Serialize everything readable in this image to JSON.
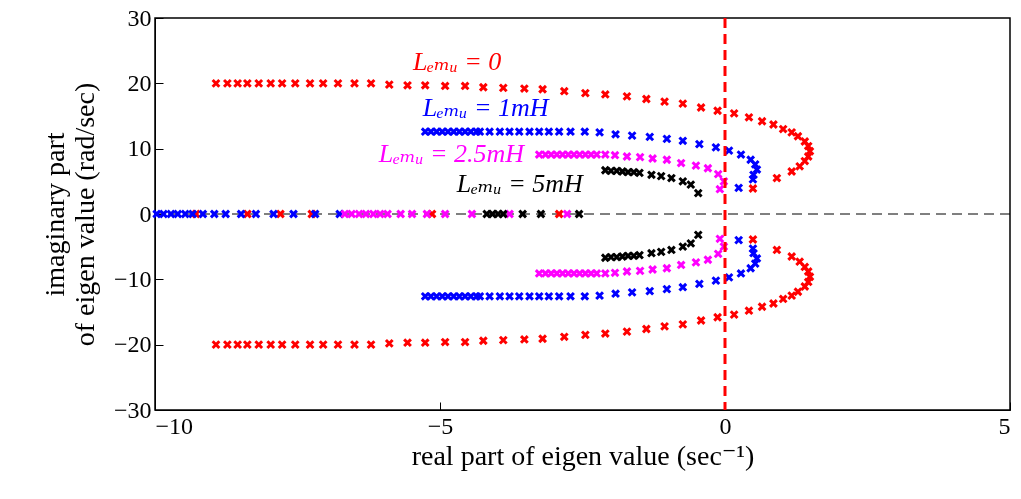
{
  "chart_data": {
    "type": "scatter",
    "xlabel": "real part of eigen value (sec⁻¹)",
    "ylabel": "imaginary part\nof eigen value (rad/sec)",
    "xlim": [
      -10,
      5
    ],
    "xticks": [
      -10,
      -5,
      0,
      5
    ],
    "ylim": [
      -30,
      30
    ],
    "yticks": [
      -30,
      -20,
      -10,
      0,
      10,
      20,
      30
    ],
    "marker": "cross",
    "ref_lines": [
      {
        "axis": "x",
        "value": 0,
        "color": "#ff0000",
        "line_style": "dashed"
      },
      {
        "axis": "y",
        "value": 0,
        "color": "#000000",
        "line_style": "dashed"
      }
    ],
    "series": [
      {
        "name": "Lₑₘᵤ = 0",
        "color": "#ff0000",
        "x": [
          -8.93,
          -8.73,
          -8.55,
          -8.38,
          -8.18,
          -7.97,
          -7.77,
          -7.54,
          -7.28,
          -7.05,
          -6.79,
          -6.5,
          -6.21,
          -5.89,
          -5.57,
          -5.26,
          -4.91,
          -4.56,
          -4.24,
          -3.89,
          -3.52,
          -3.2,
          -2.82,
          -2.45,
          -2.1,
          -1.72,
          -1.38,
          -1.06,
          -0.74,
          -0.42,
          -0.13,
          0.16,
          0.42,
          0.65,
          0.85,
          1.02,
          1.17,
          1.28,
          1.4,
          1.46,
          1.49,
          1.46,
          1.4,
          1.31,
          1.17,
          0.91,
          0.49,
          -8.93,
          -8.73,
          -8.55,
          -8.38,
          -8.18,
          -7.97,
          -7.77,
          -7.54,
          -7.28,
          -7.05,
          -6.79,
          -6.5,
          -6.21,
          -5.89,
          -5.57,
          -5.26,
          -4.91,
          -4.56,
          -4.24,
          -3.89,
          -3.52,
          -3.2,
          -2.82,
          -2.45,
          -2.1,
          -1.72,
          -1.38,
          -1.06,
          -0.74,
          -0.42,
          -0.13,
          0.16,
          0.42,
          0.65,
          0.85,
          1.02,
          1.17,
          1.28,
          1.4,
          1.46,
          1.49,
          1.46,
          1.4,
          1.31,
          1.17,
          0.91,
          0.49,
          -9.28,
          -8.38,
          -7.8,
          -7.25,
          -5.14,
          -2.91
        ],
        "values": [
          20.0,
          20.0,
          20.0,
          20.0,
          20.0,
          20.0,
          20.0,
          20.0,
          20.0,
          20.0,
          20.0,
          20.0,
          20.0,
          19.8,
          19.7,
          19.7,
          19.6,
          19.6,
          19.4,
          19.3,
          19.2,
          19.1,
          18.8,
          18.5,
          18.3,
          18.0,
          17.6,
          17.2,
          16.9,
          16.3,
          15.8,
          15.4,
          14.8,
          14.2,
          13.7,
          13.0,
          12.5,
          11.9,
          11.1,
          10.4,
          9.6,
          8.8,
          8.1,
          7.3,
          6.5,
          5.5,
          3.9,
          -20.0,
          -20.0,
          -20.0,
          -20.0,
          -20.0,
          -20.0,
          -20.0,
          -20.0,
          -20.0,
          -20.0,
          -20.0,
          -20.0,
          -20.0,
          -19.8,
          -19.7,
          -19.7,
          -19.6,
          -19.6,
          -19.4,
          -19.3,
          -19.2,
          -19.1,
          -18.8,
          -18.5,
          -18.3,
          -18.0,
          -17.6,
          -17.2,
          -16.9,
          -16.3,
          -15.8,
          -15.4,
          -14.8,
          -14.2,
          -13.7,
          -13.0,
          -12.5,
          -11.9,
          -11.1,
          -10.4,
          -9.6,
          -8.8,
          -8.1,
          -7.3,
          -6.5,
          -5.5,
          -3.9,
          0,
          0,
          0,
          0,
          0,
          0
        ]
      },
      {
        "name": "Lₑₘᵤ = 1mH",
        "color": "#0000ff",
        "x": [
          -5.26,
          -5.16,
          -5.06,
          -4.96,
          -4.86,
          -4.76,
          -4.66,
          -4.56,
          -4.46,
          -4.36,
          -4.3,
          -4.13,
          -3.95,
          -3.78,
          -3.61,
          -3.43,
          -3.26,
          -3.09,
          -2.91,
          -2.71,
          -2.46,
          -2.2,
          -1.92,
          -1.63,
          -1.32,
          -1.02,
          -0.74,
          -0.45,
          -0.16,
          0.07,
          0.28,
          0.45,
          0.53,
          0.56,
          0.5,
          0.49,
          0.24,
          -5.26,
          -5.16,
          -5.06,
          -4.96,
          -4.86,
          -4.76,
          -4.66,
          -4.56,
          -4.46,
          -4.36,
          -4.3,
          -4.13,
          -3.95,
          -3.78,
          -3.61,
          -3.43,
          -3.26,
          -3.09,
          -2.91,
          -2.71,
          -2.46,
          -2.2,
          -1.92,
          -1.63,
          -1.32,
          -1.02,
          -0.74,
          -0.45,
          -0.16,
          0.07,
          0.28,
          0.45,
          0.53,
          0.56,
          0.5,
          0.49,
          0.24,
          -9.97,
          -9.85,
          -9.72,
          -9.6,
          -9.47,
          -9.34,
          -9.16,
          -8.96,
          -8.76,
          -8.49,
          -8.23,
          -7.92,
          -7.57,
          -7.19,
          -6.76
        ],
        "values": [
          12.6,
          12.6,
          12.6,
          12.6,
          12.6,
          12.6,
          12.6,
          12.6,
          12.6,
          12.6,
          12.6,
          12.6,
          12.6,
          12.6,
          12.6,
          12.6,
          12.6,
          12.6,
          12.6,
          12.6,
          12.6,
          12.5,
          12.2,
          12.0,
          11.8,
          11.5,
          11.2,
          10.7,
          10.2,
          9.7,
          9.1,
          8.3,
          7.6,
          6.8,
          6.0,
          5.3,
          4.0,
          -12.6,
          -12.6,
          -12.6,
          -12.6,
          -12.6,
          -12.6,
          -12.6,
          -12.6,
          -12.6,
          -12.6,
          -12.6,
          -12.6,
          -12.6,
          -12.6,
          -12.6,
          -12.6,
          -12.6,
          -12.6,
          -12.6,
          -12.6,
          -12.6,
          -12.5,
          -12.2,
          -12.0,
          -11.8,
          -11.5,
          -11.2,
          -10.7,
          -10.2,
          -9.7,
          -9.1,
          -8.3,
          -7.6,
          -6.8,
          -6.0,
          -5.3,
          -4.0,
          0,
          0,
          0,
          0,
          0,
          0,
          0,
          0,
          0,
          0,
          0,
          0,
          0,
          0,
          0
        ]
      },
      {
        "name": "Lₑₘᵤ = 2.5mH",
        "color": "#ff00ff",
        "x": [
          -3.26,
          -3.15,
          -3.05,
          -2.95,
          -2.85,
          -2.75,
          -2.65,
          -2.55,
          -2.45,
          -2.35,
          -2.25,
          -2.1,
          -1.93,
          -1.72,
          -1.49,
          -1.27,
          -1.02,
          -0.77,
          -0.51,
          -0.3,
          -0.12,
          -0.02,
          -0.09,
          -3.26,
          -3.15,
          -3.05,
          -2.95,
          -2.85,
          -2.75,
          -2.65,
          -2.55,
          -2.45,
          -2.35,
          -2.25,
          -2.1,
          -1.93,
          -1.72,
          -1.49,
          -1.27,
          -1.02,
          -0.77,
          -0.51,
          -0.3,
          -0.12,
          -0.02,
          -0.09,
          -6.67,
          -6.55,
          -6.42,
          -6.3,
          -6.17,
          -6.05,
          -5.92,
          -5.69,
          -5.49,
          -5.23,
          -4.91,
          -4.44,
          -3.78,
          -2.77
        ],
        "values": [
          9.1,
          9.1,
          9.1,
          9.1,
          9.1,
          9.1,
          9.1,
          9.1,
          9.1,
          9.1,
          9.1,
          9.1,
          9.0,
          8.8,
          8.7,
          8.5,
          8.3,
          7.8,
          7.4,
          7.0,
          6.1,
          5.0,
          3.8,
          -9.1,
          -9.1,
          -9.1,
          -9.1,
          -9.1,
          -9.1,
          -9.1,
          -9.1,
          -9.1,
          -9.1,
          -9.1,
          -9.1,
          -9.0,
          -8.8,
          -8.7,
          -8.5,
          -8.3,
          -7.8,
          -7.4,
          -7.0,
          -6.1,
          -5.0,
          -3.8,
          0,
          0,
          0,
          0,
          0,
          0,
          0,
          0,
          0,
          0,
          0,
          0,
          0,
          0
        ]
      },
      {
        "name": "Lₑₘᵤ = 5mH",
        "color": "#000000",
        "x": [
          -2.1,
          -2.0,
          -1.9,
          -1.8,
          -1.7,
          -1.6,
          -1.5,
          -1.29,
          -1.12,
          -0.94,
          -0.74,
          -0.6,
          -0.47,
          -2.1,
          -2.0,
          -1.9,
          -1.8,
          -1.7,
          -1.6,
          -1.5,
          -1.29,
          -1.12,
          -0.94,
          -0.74,
          -0.6,
          -0.47,
          -4.18,
          -4.08,
          -3.98,
          -3.89,
          -3.55,
          -3.23,
          -2.56
        ],
        "values": [
          6.7,
          6.6,
          6.6,
          6.5,
          6.4,
          6.4,
          6.3,
          6.0,
          5.8,
          5.5,
          5.0,
          4.5,
          3.2,
          -6.7,
          -6.6,
          -6.6,
          -6.5,
          -6.4,
          -6.4,
          -6.3,
          -6.0,
          -5.8,
          -5.5,
          -5.0,
          -4.5,
          -3.2,
          0,
          0,
          0,
          0,
          0,
          0,
          0
        ]
      }
    ]
  }
}
